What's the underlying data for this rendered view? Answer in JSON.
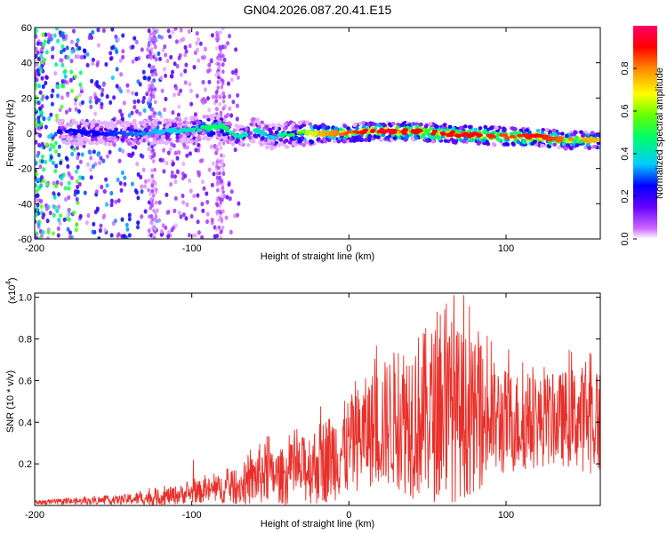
{
  "title": "GN04.2026.087.20.41.E15",
  "colors": {
    "axis": "#000000",
    "snr_line": "#e8302a",
    "ridge_low": "#6600cc",
    "ridge_mid": "#00d8ff",
    "ridge_high": "#ff2a00"
  },
  "chart_data": [
    {
      "type": "heatmap",
      "title": "GN04.2026.087.20.41.E15",
      "xlabel": "Height of straight line (km)",
      "ylabel": "Frequency (Hz)",
      "xlim": [
        -200,
        160
      ],
      "ylim": [
        -60,
        60
      ],
      "xticks": [
        -200,
        -100,
        0,
        100
      ],
      "xtick_labels": [
        "-200",
        "-100",
        "0",
        "100"
      ],
      "yticks": [
        60,
        40,
        20,
        0,
        -20,
        -40,
        -60
      ],
      "ytick_labels": [
        "60",
        "40",
        "20",
        "0",
        "-20",
        "-40",
        "-60"
      ],
      "colorbar": {
        "label": "Normalized spectral amplitude",
        "range": [
          0,
          1
        ],
        "ticks": [
          0.0,
          0.2,
          0.4,
          0.6,
          0.8
        ],
        "tick_labels": [
          "0.0",
          "0.2",
          "0.4",
          "0.6",
          "0.8"
        ],
        "colormap": [
          "#ffffff",
          "#cc66ff",
          "#6600ff",
          "#0000ff",
          "#00ccff",
          "#00ff66",
          "#66ff00",
          "#ffff00",
          "#ff8800",
          "#ff0000",
          "#ff0066"
        ]
      },
      "ridge": {
        "x": [
          -180,
          -160,
          -140,
          -120,
          -100,
          -90,
          -80,
          -70,
          -60,
          -50,
          -40,
          -30,
          -20,
          -10,
          0,
          10,
          20,
          40,
          60,
          80,
          100,
          120,
          140,
          160
        ],
        "freq": [
          1,
          0,
          0,
          1,
          2,
          3,
          4,
          -3,
          2,
          -2,
          -1,
          0,
          0,
          0,
          0,
          1,
          1,
          1,
          0,
          -1,
          -2,
          -2,
          -4,
          -4
        ],
        "amplitude": [
          0.3,
          0.3,
          0.35,
          0.4,
          0.45,
          0.5,
          0.5,
          0.45,
          0.45,
          0.4,
          0.5,
          0.6,
          0.75,
          0.8,
          0.85,
          0.9,
          0.95,
          0.9,
          0.9,
          0.9,
          0.85,
          0.9,
          0.8,
          0.75
        ]
      }
    },
    {
      "type": "line",
      "title": "",
      "xlabel": "Height of straight line (km)",
      "ylabel": "SNR (10 * v/v)",
      "scale_note": "(x10",
      "scale_exp": "4",
      "scale_close": ")",
      "xlim": [
        -200,
        160
      ],
      "ylim": [
        0,
        1.02
      ],
      "xticks": [
        -200,
        -100,
        0,
        100
      ],
      "xtick_labels": [
        "-200",
        "-100",
        "0",
        "100"
      ],
      "yticks": [
        0.2,
        0.4,
        0.6,
        0.8,
        1.0
      ],
      "ytick_labels": [
        "0.2",
        "0.4",
        "0.6",
        "0.8",
        "1.0"
      ],
      "envelope": {
        "x": [
          -200,
          -150,
          -120,
          -100,
          -80,
          -65,
          -55,
          -50,
          -40,
          -30,
          -20,
          -10,
          0,
          10,
          20,
          30,
          40,
          50,
          60,
          70,
          80,
          90,
          100,
          110,
          120,
          130,
          140,
          150,
          160
        ],
        "mean": [
          0.015,
          0.025,
          0.04,
          0.06,
          0.08,
          0.1,
          0.16,
          0.14,
          0.14,
          0.17,
          0.2,
          0.24,
          0.28,
          0.35,
          0.38,
          0.42,
          0.43,
          0.44,
          0.45,
          0.44,
          0.42,
          0.41,
          0.4,
          0.4,
          0.4,
          0.41,
          0.42,
          0.42,
          0.4
        ],
        "spread": [
          0.01,
          0.02,
          0.04,
          0.05,
          0.07,
          0.1,
          0.16,
          0.12,
          0.14,
          0.16,
          0.2,
          0.22,
          0.24,
          0.26,
          0.3,
          0.34,
          0.4,
          0.42,
          0.44,
          0.42,
          0.36,
          0.3,
          0.26,
          0.24,
          0.22,
          0.22,
          0.24,
          0.26,
          0.26
        ]
      },
      "peaks": [
        {
          "x": -99,
          "y": 0.22
        },
        {
          "x": -51,
          "y": 0.33
        },
        {
          "x": 62,
          "y": 0.97
        },
        {
          "x": 67,
          "y": 1.01
        },
        {
          "x": 73,
          "y": 1.01
        }
      ]
    }
  ]
}
